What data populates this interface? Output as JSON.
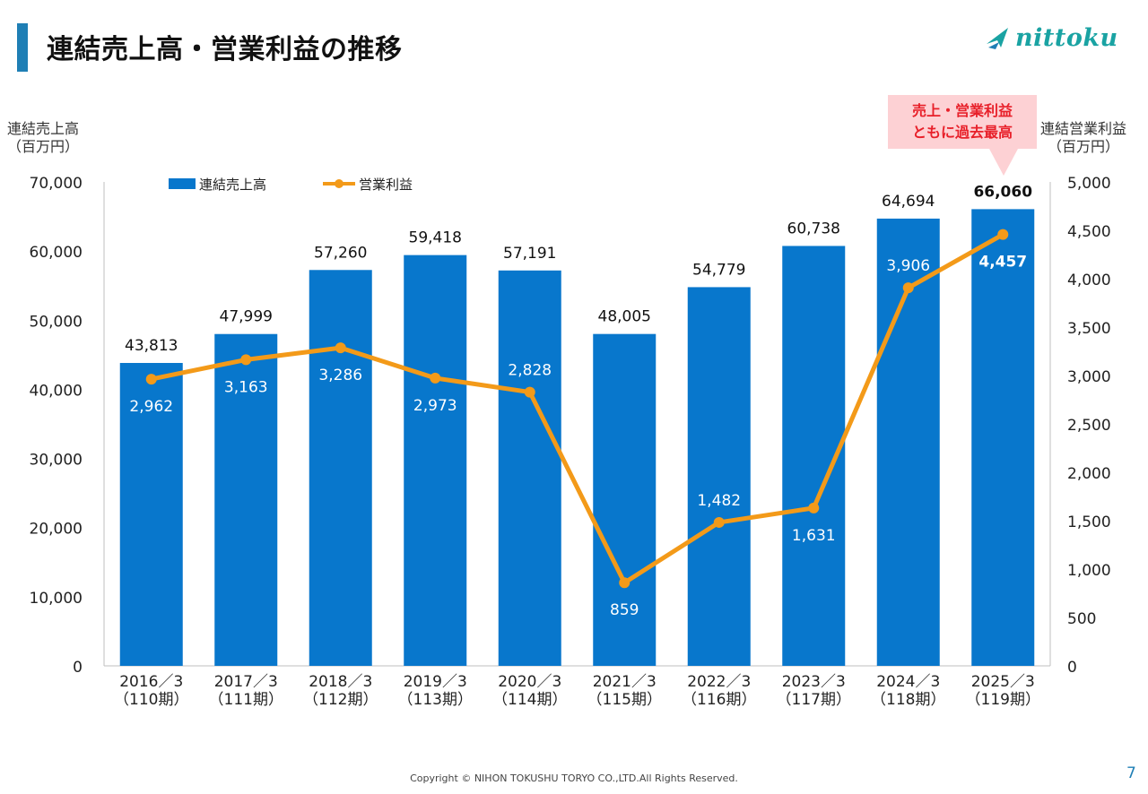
{
  "header": {
    "title": "連結売上高・営業利益の推移",
    "logo_text": "nittoku"
  },
  "axes": {
    "left_title_line1": "連結売上高",
    "left_title_line2": "（百万円）",
    "right_title_line1": "連結営業利益",
    "right_title_line2": "（百万円）"
  },
  "callout": {
    "line1": "売上・営業利益",
    "line2": "ともに過去最高"
  },
  "footer": {
    "copyright": "Copyright © NIHON TOKUSHU TORYO CO.,LTD.All Rights Reserved.",
    "page_number": "7"
  },
  "chart_data": {
    "type": "bar",
    "categories": [
      "2016／3",
      "2017／3",
      "2018／3",
      "2019／3",
      "2020／3",
      "2021／3",
      "2022／3",
      "2023／3",
      "2024／3",
      "2025／3"
    ],
    "category_sublabels": [
      "（110期）",
      "（111期）",
      "（112期）",
      "（113期）",
      "（114期）",
      "（115期）",
      "（116期）",
      "（117期）",
      "（118期）",
      "（119期）"
    ],
    "series": [
      {
        "name": "連結売上高",
        "type": "bar",
        "axis": "left",
        "color": "#0877cc",
        "values": [
          43813,
          47999,
          57260,
          59418,
          57191,
          48005,
          54779,
          60738,
          64694,
          66060
        ],
        "labels": [
          "43,813",
          "47,999",
          "57,260",
          "59,418",
          "57,191",
          "48,005",
          "54,779",
          "60,738",
          "64,694",
          "66,060"
        ]
      },
      {
        "name": "営業利益",
        "type": "line",
        "axis": "right",
        "color": "#f39a19",
        "values": [
          2962,
          3163,
          3286,
          2973,
          2828,
          859,
          1482,
          1631,
          3906,
          4457
        ],
        "labels": [
          "2,962",
          "3,163",
          "3,286",
          "2,973",
          "2,828",
          "859",
          "1,482",
          "1,631",
          "3,906",
          "4,457"
        ]
      }
    ],
    "left_axis": {
      "min": 0,
      "max": 70000,
      "ticks": [
        "0",
        "10,000",
        "20,000",
        "30,000",
        "40,000",
        "50,000",
        "60,000",
        "70,000"
      ]
    },
    "right_axis": {
      "min": 0,
      "max": 5000,
      "ticks": [
        "0",
        "500",
        "1,000",
        "1,500",
        "2,000",
        "2,500",
        "3,000",
        "3,500",
        "4,000",
        "4,500",
        "5,000"
      ]
    },
    "legend_position": "top-left",
    "grid": false
  }
}
